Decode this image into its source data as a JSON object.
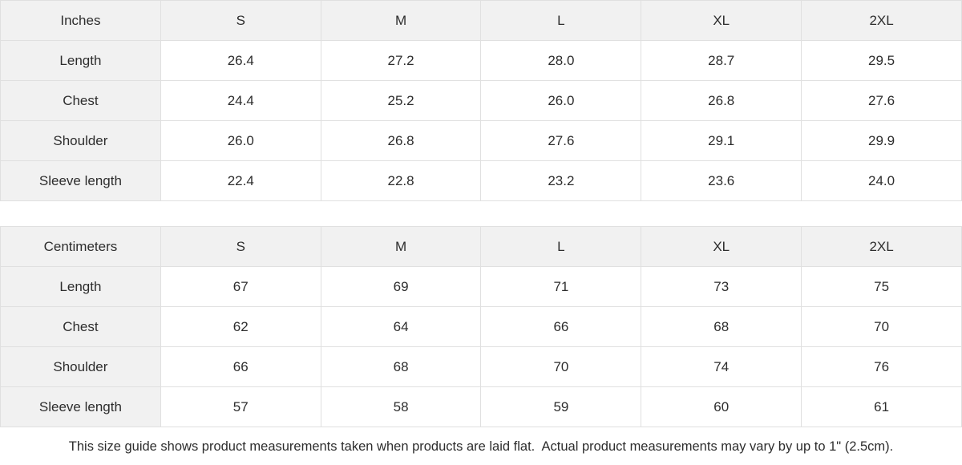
{
  "tables": [
    {
      "unit_label": "Inches",
      "sizes": [
        "S",
        "M",
        "L",
        "XL",
        "2XL"
      ],
      "rows": [
        {
          "label": "Length",
          "values": [
            "26.4",
            "27.2",
            "28.0",
            "28.7",
            "29.5"
          ]
        },
        {
          "label": "Chest",
          "values": [
            "24.4",
            "25.2",
            "26.0",
            "26.8",
            "27.6"
          ]
        },
        {
          "label": "Shoulder",
          "values": [
            "26.0",
            "26.8",
            "27.6",
            "29.1",
            "29.9"
          ]
        },
        {
          "label": "Sleeve length",
          "values": [
            "22.4",
            "22.8",
            "23.2",
            "23.6",
            "24.0"
          ]
        }
      ]
    },
    {
      "unit_label": "Centimeters",
      "sizes": [
        "S",
        "M",
        "L",
        "XL",
        "2XL"
      ],
      "rows": [
        {
          "label": "Length",
          "values": [
            "67",
            "69",
            "71",
            "73",
            "75"
          ]
        },
        {
          "label": "Chest",
          "values": [
            "62",
            "64",
            "66",
            "68",
            "70"
          ]
        },
        {
          "label": "Shoulder",
          "values": [
            "66",
            "68",
            "70",
            "74",
            "76"
          ]
        },
        {
          "label": "Sleeve length",
          "values": [
            "57",
            "58",
            "59",
            "60",
            "61"
          ]
        }
      ]
    }
  ],
  "footer": {
    "note": "This size guide shows product measurements taken when products are laid flat.  Actual product measurements may vary by up to 1\" (2.5cm)."
  },
  "colors": {
    "header_bg": "#f1f1f1",
    "border": "#e0e0e0",
    "text": "#2d2d2d",
    "cell_bg": "#ffffff"
  },
  "chart_data": [
    {
      "type": "table",
      "title": "Inches",
      "columns": [
        "Inches",
        "S",
        "M",
        "L",
        "XL",
        "2XL"
      ],
      "rows": [
        [
          "Length",
          26.4,
          27.2,
          28.0,
          28.7,
          29.5
        ],
        [
          "Chest",
          24.4,
          25.2,
          26.0,
          26.8,
          27.6
        ],
        [
          "Shoulder",
          26.0,
          26.8,
          27.6,
          29.1,
          29.9
        ],
        [
          "Sleeve length",
          22.4,
          22.8,
          23.2,
          23.6,
          24.0
        ]
      ]
    },
    {
      "type": "table",
      "title": "Centimeters",
      "columns": [
        "Centimeters",
        "S",
        "M",
        "L",
        "XL",
        "2XL"
      ],
      "rows": [
        [
          "Length",
          67,
          69,
          71,
          73,
          75
        ],
        [
          "Chest",
          62,
          64,
          66,
          68,
          70
        ],
        [
          "Shoulder",
          66,
          68,
          70,
          74,
          76
        ],
        [
          "Sleeve length",
          57,
          58,
          59,
          60,
          61
        ]
      ]
    }
  ]
}
